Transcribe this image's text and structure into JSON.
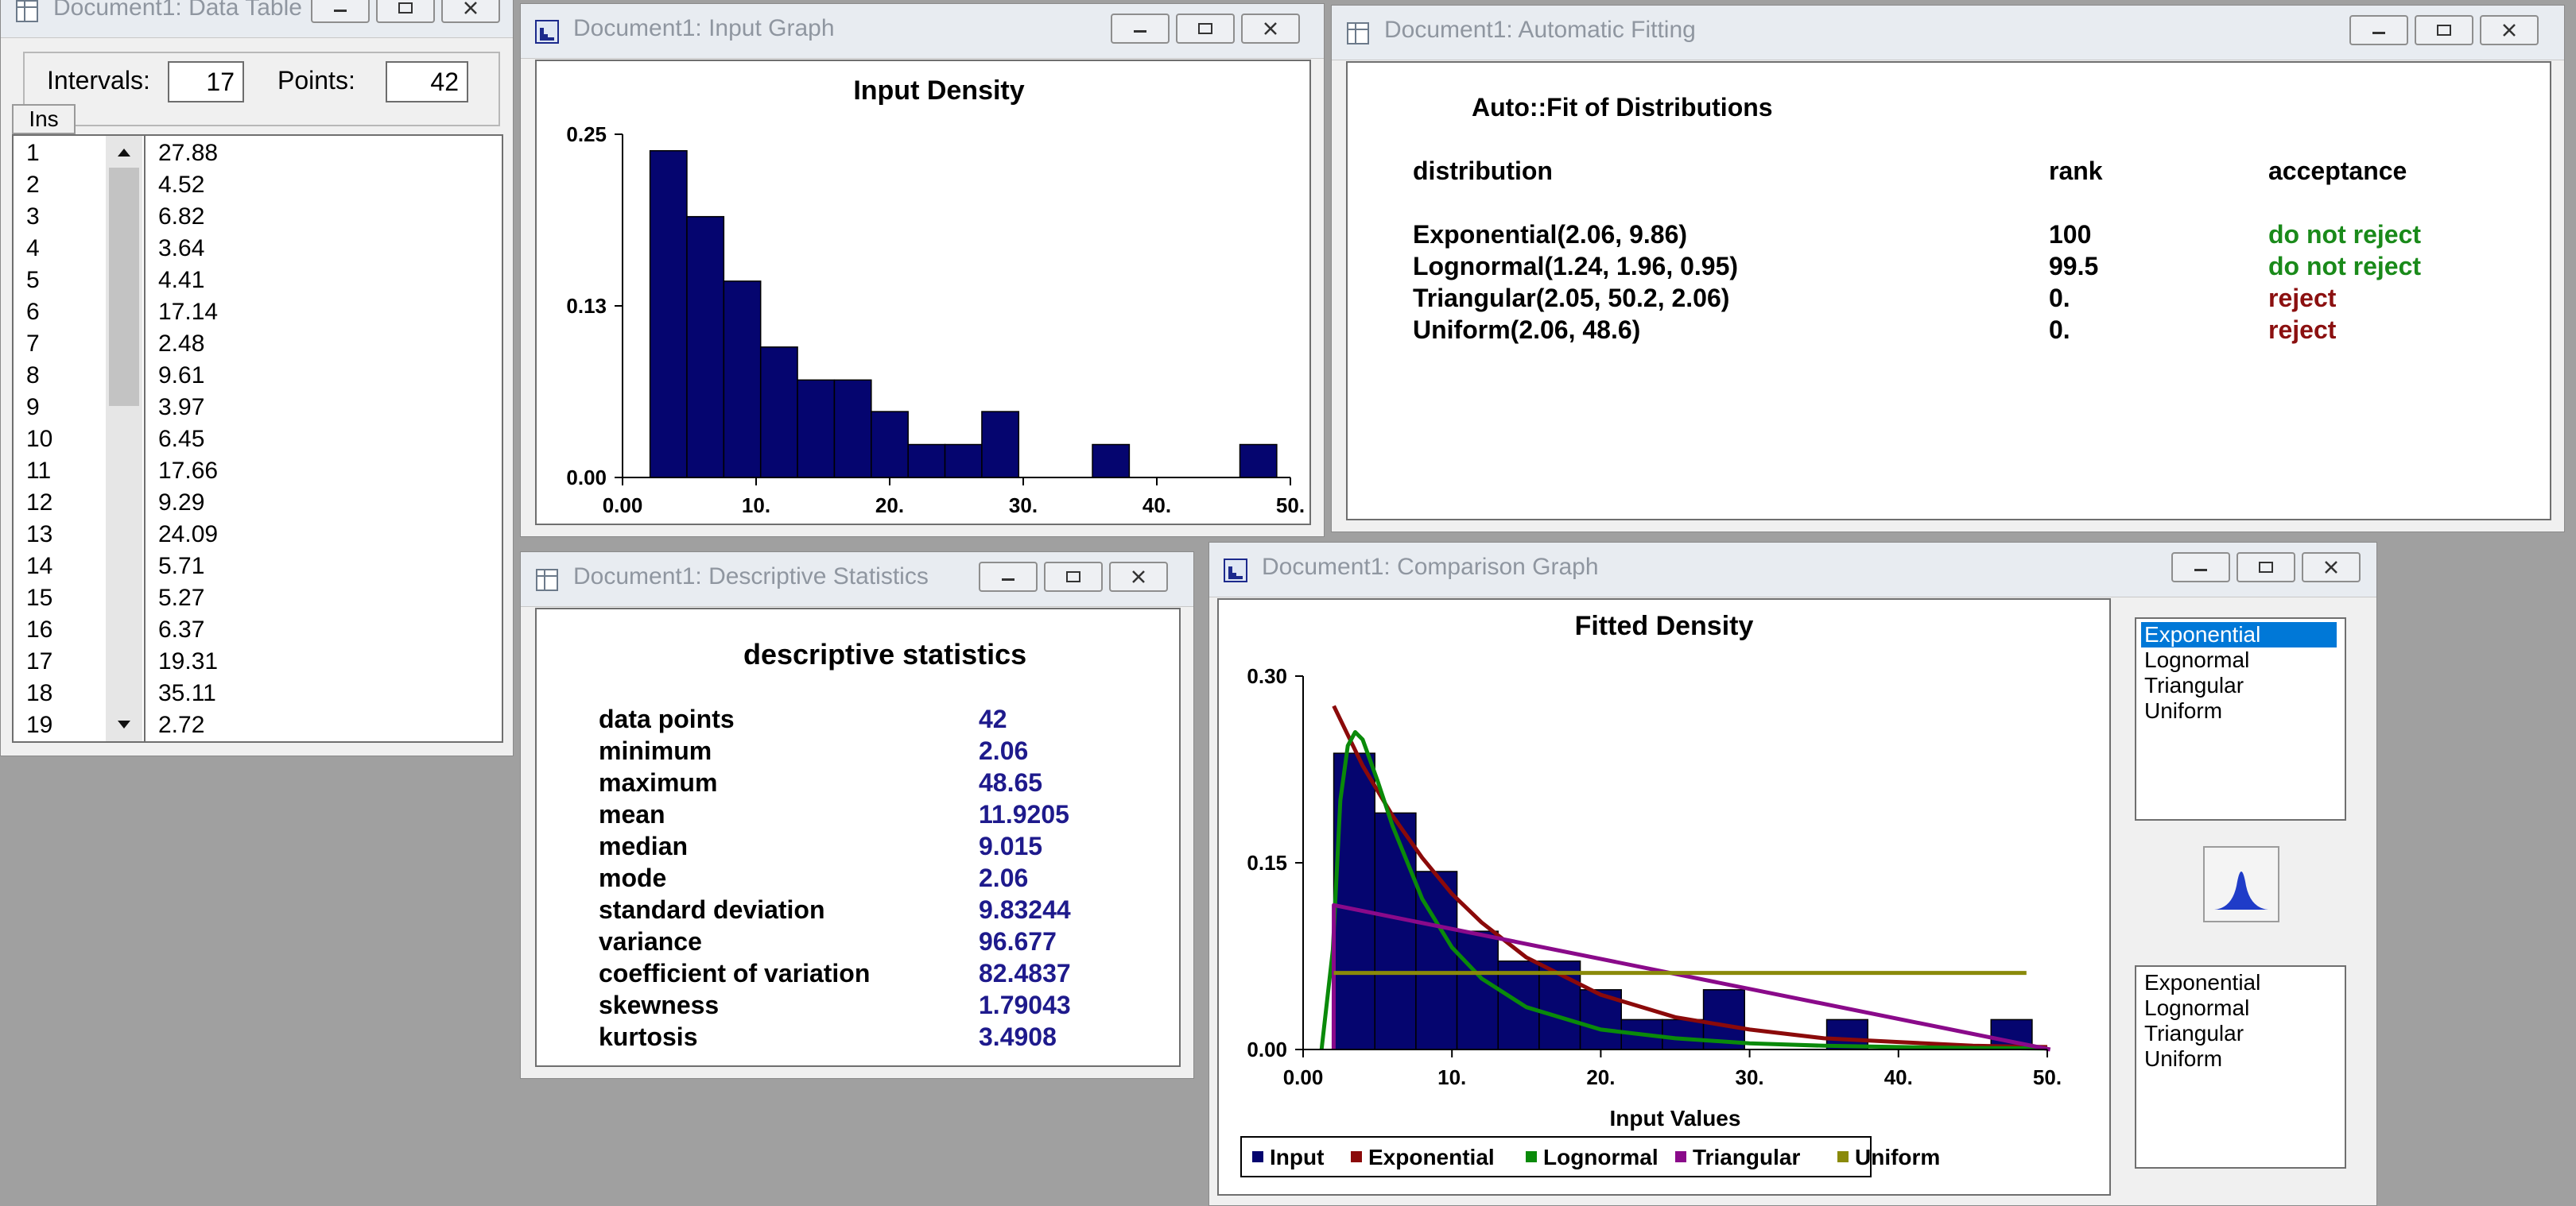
{
  "windows": {
    "data_table": {
      "title": "Document1: Data Table"
    },
    "input_graph": {
      "title": "Document1: Input Graph"
    },
    "auto_fit": {
      "title": "Document1: Automatic Fitting"
    },
    "desc_stats": {
      "title": "Document1: Descriptive Statistics"
    },
    "comparison": {
      "title": "Document1: Comparison Graph"
    }
  },
  "data_table": {
    "intervals_label": "Intervals:",
    "intervals_value": "17",
    "points_label": "Points:",
    "points_value": "42",
    "ins_label": "Ins",
    "rows": [
      {
        "n": "1",
        "v": "27.88"
      },
      {
        "n": "2",
        "v": "4.52"
      },
      {
        "n": "3",
        "v": "6.82"
      },
      {
        "n": "4",
        "v": "3.64"
      },
      {
        "n": "5",
        "v": "4.41"
      },
      {
        "n": "6",
        "v": "17.14"
      },
      {
        "n": "7",
        "v": "2.48"
      },
      {
        "n": "8",
        "v": "9.61"
      },
      {
        "n": "9",
        "v": "3.97"
      },
      {
        "n": "10",
        "v": "6.45"
      },
      {
        "n": "11",
        "v": "17.66"
      },
      {
        "n": "12",
        "v": "9.29"
      },
      {
        "n": "13",
        "v": "24.09"
      },
      {
        "n": "14",
        "v": "5.71"
      },
      {
        "n": "15",
        "v": "5.27"
      },
      {
        "n": "16",
        "v": "6.37"
      },
      {
        "n": "17",
        "v": "19.31"
      },
      {
        "n": "18",
        "v": "35.11"
      },
      {
        "n": "19",
        "v": "2.72"
      }
    ]
  },
  "auto_fit": {
    "heading": "Auto::Fit of Distributions",
    "col_distribution": "distribution",
    "col_rank": "rank",
    "col_acceptance": "acceptance",
    "rows": [
      {
        "dist": "Exponential(2.06, 9.86)",
        "rank": "100",
        "accept": "do not reject",
        "color": "#1a8a1a"
      },
      {
        "dist": "Lognormal(1.24, 1.96, 0.95)",
        "rank": "99.5",
        "accept": "do not reject",
        "color": "#1a8a1a"
      },
      {
        "dist": "Triangular(2.05, 50.2, 2.06)",
        "rank": "0.",
        "accept": "reject",
        "color": "#8b1010"
      },
      {
        "dist": "Uniform(2.06, 48.6)",
        "rank": "0.",
        "accept": "reject",
        "color": "#8b1010"
      }
    ]
  },
  "desc_stats": {
    "heading": "descriptive statistics",
    "rows": [
      {
        "name": "data points",
        "value": "42"
      },
      {
        "name": "minimum",
        "value": "2.06"
      },
      {
        "name": "maximum",
        "value": "48.65"
      },
      {
        "name": "mean",
        "value": "11.9205"
      },
      {
        "name": "median",
        "value": "9.015"
      },
      {
        "name": "mode",
        "value": "2.06"
      },
      {
        "name": "standard deviation",
        "value": "9.83244"
      },
      {
        "name": "variance",
        "value": "96.677"
      },
      {
        "name": "coefficient of variation",
        "value": "82.4837"
      },
      {
        "name": "skewness",
        "value": "1.79043"
      },
      {
        "name": "kurtosis",
        "value": "3.4908"
      }
    ]
  },
  "comparison": {
    "list_top": [
      "Exponential",
      "Lognormal",
      "Triangular",
      "Uniform"
    ],
    "list_top_selected": 0,
    "list_bottom": [
      "Exponential",
      "Lognormal",
      "Triangular",
      "Uniform"
    ]
  },
  "chart_data": [
    {
      "type": "bar",
      "title": "Input Density",
      "xlabel": "",
      "ylabel": "",
      "x_ticks": [
        "0.00",
        "10.",
        "20.",
        "30.",
        "40.",
        "50."
      ],
      "y_ticks": [
        "0.00",
        "0.13",
        "0.25"
      ],
      "xlim": [
        0,
        50
      ],
      "ylim": [
        0,
        0.25
      ],
      "bin_start": 2.06,
      "bin_width": 2.76,
      "values": [
        0.238,
        0.19,
        0.143,
        0.095,
        0.071,
        0.071,
        0.048,
        0.024,
        0.024,
        0.048,
        0,
        0,
        0.024,
        0,
        0,
        0,
        0.024
      ],
      "bar_color": "#05056f",
      "grid": false
    },
    {
      "type": "bar",
      "title": "Fitted Density",
      "xlabel": "Input Values",
      "ylabel": "",
      "x_ticks": [
        "0.00",
        "10.",
        "20.",
        "30.",
        "40.",
        "50."
      ],
      "y_ticks": [
        "0.00",
        "0.15",
        "0.30"
      ],
      "xlim": [
        0,
        50
      ],
      "ylim": [
        0,
        0.3
      ],
      "bin_start": 2.06,
      "bin_width": 2.76,
      "values": [
        0.238,
        0.19,
        0.143,
        0.095,
        0.071,
        0.071,
        0.048,
        0.024,
        0.024,
        0.048,
        0,
        0,
        0.024,
        0,
        0,
        0,
        0.024
      ],
      "bar_color": "#05056f",
      "legend_position": "bottom",
      "legend": [
        {
          "name": "Input",
          "color": "#05056f"
        },
        {
          "name": "Exponential",
          "color": "#8b0a0a"
        },
        {
          "name": "Lognormal",
          "color": "#0a8a0a"
        },
        {
          "name": "Triangular",
          "color": "#8a0a8a"
        },
        {
          "name": "Uniform",
          "color": "#8a8a0a"
        }
      ],
      "curves": [
        {
          "name": "Exponential",
          "color": "#8b0a0a",
          "x": [
            2.06,
            4,
            6,
            8,
            10,
            12,
            15,
            20,
            25,
            30,
            35,
            40,
            45,
            50
          ],
          "y": [
            0.276,
            0.228,
            0.188,
            0.154,
            0.125,
            0.102,
            0.074,
            0.044,
            0.026,
            0.016,
            0.009,
            0.006,
            0.003,
            0.002
          ]
        },
        {
          "name": "Lognormal",
          "color": "#0a8a0a",
          "x": [
            1.24,
            2,
            2.5,
            3,
            3.5,
            4,
            5,
            6,
            8,
            10,
            12,
            15,
            20,
            25,
            30,
            35,
            40,
            45,
            50
          ],
          "y": [
            0,
            0.08,
            0.2,
            0.244,
            0.255,
            0.249,
            0.216,
            0.18,
            0.121,
            0.082,
            0.057,
            0.034,
            0.016,
            0.009,
            0.005,
            0.003,
            0.002,
            0.0012,
            0.0008
          ]
        },
        {
          "name": "Triangular",
          "color": "#8a0a8a",
          "x": [
            2.05,
            2.06,
            50.2
          ],
          "y": [
            0,
            0.116,
            0
          ]
        },
        {
          "name": "Uniform",
          "color": "#8a8a0a",
          "x": [
            2.06,
            48.6
          ],
          "y": [
            0.0615,
            0.0615
          ]
        }
      ]
    }
  ]
}
